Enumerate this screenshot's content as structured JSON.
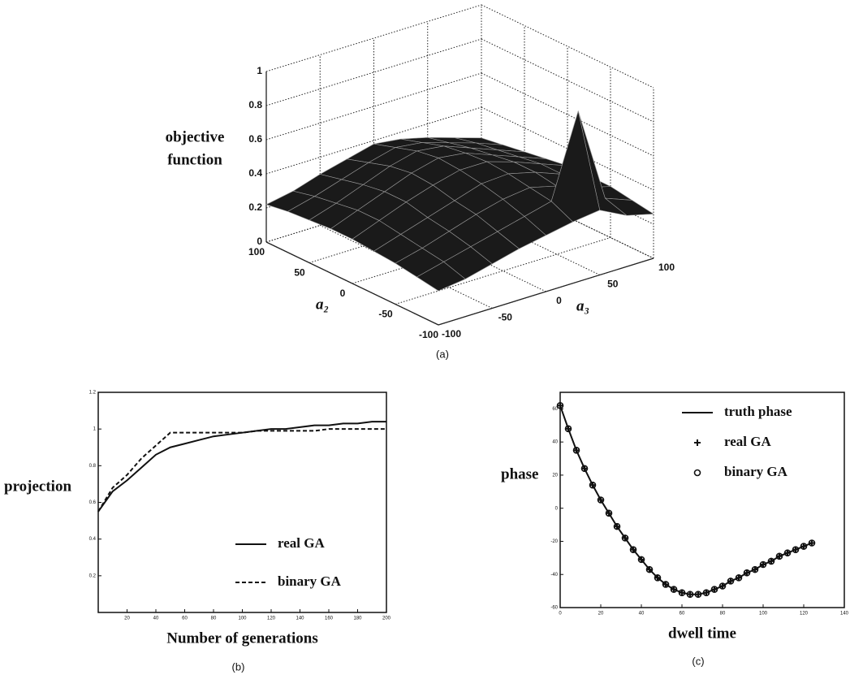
{
  "chart_data": [
    {
      "type": "surface",
      "zlabel": [
        "objective",
        "function"
      ],
      "ylabel": "a₂",
      "xlabel": "a₃",
      "caption": "(a)",
      "x": [
        -100,
        -75,
        -50,
        -25,
        0,
        25,
        50,
        75,
        100
      ],
      "y": [
        -100,
        -75,
        -50,
        -25,
        0,
        25,
        50,
        75,
        100
      ],
      "z": [
        [
          0.2,
          0.22,
          0.26,
          0.3,
          0.33,
          0.36,
          0.38,
          0.3,
          0.26
        ],
        [
          0.22,
          0.26,
          0.3,
          0.34,
          0.38,
          0.42,
          0.9,
          0.34,
          0.28
        ],
        [
          0.24,
          0.28,
          0.33,
          0.38,
          0.42,
          0.44,
          0.4,
          0.34,
          0.3
        ],
        [
          0.25,
          0.3,
          0.35,
          0.4,
          0.45,
          0.46,
          0.42,
          0.36,
          0.3
        ],
        [
          0.26,
          0.32,
          0.38,
          0.43,
          0.47,
          0.47,
          0.42,
          0.36,
          0.3
        ],
        [
          0.26,
          0.32,
          0.38,
          0.44,
          0.48,
          0.46,
          0.4,
          0.34,
          0.28
        ],
        [
          0.25,
          0.3,
          0.36,
          0.42,
          0.46,
          0.44,
          0.38,
          0.32,
          0.26
        ],
        [
          0.24,
          0.28,
          0.33,
          0.38,
          0.42,
          0.4,
          0.35,
          0.3,
          0.24
        ],
        [
          0.22,
          0.25,
          0.3,
          0.34,
          0.38,
          0.36,
          0.32,
          0.27,
          0.22
        ]
      ],
      "xlim": [
        -100,
        100
      ],
      "ylim": [
        -100,
        100
      ],
      "zlim": [
        0,
        1
      ],
      "xticks": [
        -100,
        -50,
        0,
        50,
        100
      ],
      "yticks": [
        -100,
        -50,
        0,
        50,
        100
      ],
      "zticks": [
        0,
        0.2,
        0.4,
        0.6,
        0.8,
        1
      ],
      "grid": true,
      "color": "#1a1a1a"
    },
    {
      "type": "line",
      "ylabel": "projection",
      "xlabel": "Number of generations",
      "caption": "(b)",
      "x": [
        0,
        10,
        20,
        30,
        40,
        50,
        60,
        70,
        80,
        90,
        100,
        110,
        120,
        130,
        140,
        150,
        160,
        170,
        180,
        190,
        200
      ],
      "series": [
        {
          "name": "real GA",
          "color": "#111",
          "line": "solid",
          "marker": "none",
          "values": [
            0.55,
            0.66,
            0.72,
            0.79,
            0.86,
            0.9,
            0.92,
            0.94,
            0.96,
            0.97,
            0.98,
            0.99,
            1.0,
            1.0,
            1.01,
            1.02,
            1.02,
            1.03,
            1.03,
            1.04,
            1.04
          ]
        },
        {
          "name": "binary GA",
          "color": "#111",
          "line": "dashed",
          "marker": "none",
          "values": [
            0.55,
            0.68,
            0.75,
            0.84,
            0.91,
            0.98,
            0.98,
            0.98,
            0.98,
            0.98,
            0.98,
            0.99,
            0.99,
            0.99,
            0.99,
            0.99,
            1.0,
            1.0,
            1.0,
            1.0,
            1.0
          ]
        }
      ],
      "xlim": [
        0,
        200
      ],
      "ylim": [
        0,
        1.2
      ],
      "xticks": [
        20,
        40,
        60,
        80,
        100,
        120,
        140,
        160,
        180,
        200
      ],
      "yticks": [
        0.2,
        0.4,
        0.6,
        0.8,
        1,
        1.2
      ]
    },
    {
      "type": "line",
      "ylabel": "phase",
      "xlabel": "dwell time",
      "caption": "(c)",
      "x": [
        0,
        4,
        8,
        12,
        16,
        20,
        24,
        28,
        32,
        36,
        40,
        44,
        48,
        52,
        56,
        60,
        64,
        68,
        72,
        76,
        80,
        84,
        88,
        92,
        96,
        100,
        104,
        108,
        112,
        116,
        120,
        124
      ],
      "series": [
        {
          "name": "truth phase",
          "color": "#111",
          "line": "solid",
          "marker": "none",
          "values": [
            62,
            48,
            35,
            24,
            14,
            5,
            -3,
            -11,
            -18,
            -25,
            -31,
            -37,
            -42,
            -46,
            -49,
            -51,
            -52,
            -52,
            -51,
            -49,
            -47,
            -44,
            -42,
            -39,
            -37,
            -34,
            -32,
            -29,
            -27,
            -25,
            -23,
            -21
          ]
        },
        {
          "name": "real GA",
          "color": "#111",
          "line": "none",
          "marker": "plus",
          "values": [
            62,
            48,
            35,
            24,
            14,
            5,
            -3,
            -11,
            -18,
            -25,
            -31,
            -37,
            -42,
            -46,
            -49,
            -51,
            -52,
            -52,
            -51,
            -49,
            -47,
            -44,
            -42,
            -39,
            -37,
            -34,
            -32,
            -29,
            -27,
            -25,
            -23,
            -21
          ]
        },
        {
          "name": "binary GA",
          "color": "#111",
          "line": "none",
          "marker": "circle",
          "values": [
            62,
            48,
            35,
            24,
            14,
            5,
            -3,
            -11,
            -18,
            -25,
            -31,
            -37,
            -42,
            -46,
            -49,
            -51,
            -52,
            -52,
            -51,
            -49,
            -47,
            -44,
            -42,
            -39,
            -37,
            -34,
            -32,
            -29,
            -27,
            -25,
            -23,
            -21
          ]
        }
      ],
      "xlim": [
        0,
        140
      ],
      "ylim": [
        -60,
        70
      ],
      "xticks": [
        0,
        20,
        40,
        60,
        80,
        100,
        120,
        140
      ],
      "yticks": [
        -60,
        -40,
        -20,
        0,
        20,
        40,
        60
      ]
    }
  ]
}
